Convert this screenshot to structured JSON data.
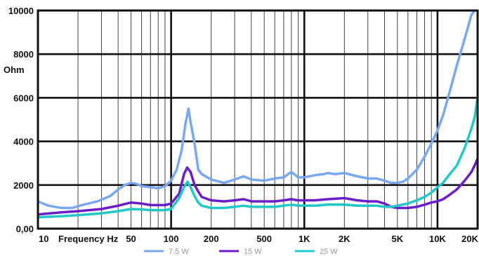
{
  "chart_data": {
    "type": "line",
    "title": "",
    "xlabel": "Frequency Hz",
    "ylabel_line1": "8000",
    "ylabel_line2": "Ohm",
    "x_scale": "log",
    "xlim": [
      10,
      20000
    ],
    "ylim": [
      0,
      10000
    ],
    "grid": true,
    "legend_position": "bottom",
    "x_ticks": [
      {
        "value": 10,
        "label": "10"
      },
      {
        "value": 50,
        "label": "50"
      },
      {
        "value": 100,
        "label": "100"
      },
      {
        "value": 200,
        "label": "200"
      },
      {
        "value": 500,
        "label": "500"
      },
      {
        "value": 1000,
        "label": "1K"
      },
      {
        "value": 2000,
        "label": "2K"
      },
      {
        "value": 5000,
        "label": "5K"
      },
      {
        "value": 10000,
        "label": "10K"
      },
      {
        "value": 20000,
        "label": "20K"
      }
    ],
    "y_ticks": [
      {
        "value": 0,
        "label": "0,00"
      },
      {
        "value": 2000,
        "label": "2000"
      },
      {
        "value": 4000,
        "label": "4000"
      },
      {
        "value": 6000,
        "label": "6000"
      },
      {
        "value": 8000,
        "label": "8000"
      },
      {
        "value": 10000,
        "label": "10000"
      }
    ],
    "series": [
      {
        "name": "7.5 W",
        "color": "#7aa8ee",
        "points": [
          [
            10,
            1250
          ],
          [
            12,
            1050
          ],
          [
            15,
            950
          ],
          [
            18,
            950
          ],
          [
            22,
            1100
          ],
          [
            28,
            1250
          ],
          [
            35,
            1500
          ],
          [
            40,
            1800
          ],
          [
            45,
            2000
          ],
          [
            50,
            2100
          ],
          [
            55,
            2050
          ],
          [
            60,
            1950
          ],
          [
            70,
            1900
          ],
          [
            80,
            1850
          ],
          [
            90,
            1950
          ],
          [
            100,
            2200
          ],
          [
            110,
            2700
          ],
          [
            120,
            3600
          ],
          [
            128,
            4800
          ],
          [
            135,
            5500
          ],
          [
            140,
            4900
          ],
          [
            150,
            3900
          ],
          [
            160,
            2700
          ],
          [
            170,
            2500
          ],
          [
            200,
            2250
          ],
          [
            250,
            2100
          ],
          [
            300,
            2250
          ],
          [
            350,
            2400
          ],
          [
            400,
            2250
          ],
          [
            500,
            2200
          ],
          [
            600,
            2300
          ],
          [
            700,
            2350
          ],
          [
            800,
            2600
          ],
          [
            900,
            2350
          ],
          [
            1000,
            2350
          ],
          [
            1200,
            2450
          ],
          [
            1400,
            2500
          ],
          [
            1500,
            2550
          ],
          [
            1700,
            2500
          ],
          [
            2000,
            2550
          ],
          [
            2500,
            2400
          ],
          [
            3000,
            2300
          ],
          [
            3500,
            2300
          ],
          [
            4000,
            2200
          ],
          [
            4500,
            2100
          ],
          [
            5000,
            2100
          ],
          [
            5500,
            2150
          ],
          [
            6000,
            2300
          ],
          [
            7000,
            2700
          ],
          [
            8000,
            3300
          ],
          [
            9000,
            3900
          ],
          [
            10000,
            4500
          ],
          [
            11000,
            5200
          ],
          [
            12000,
            6000
          ],
          [
            14000,
            7500
          ],
          [
            16000,
            8700
          ],
          [
            18000,
            9800
          ],
          [
            19000,
            10000
          ]
        ]
      },
      {
        "name": "15 W",
        "color": "#6a1ec8",
        "points": [
          [
            10,
            650
          ],
          [
            15,
            750
          ],
          [
            20,
            800
          ],
          [
            30,
            900
          ],
          [
            40,
            1050
          ],
          [
            50,
            1200
          ],
          [
            60,
            1150
          ],
          [
            70,
            1080
          ],
          [
            90,
            1080
          ],
          [
            100,
            1150
          ],
          [
            115,
            1600
          ],
          [
            125,
            2500
          ],
          [
            132,
            2800
          ],
          [
            140,
            2600
          ],
          [
            150,
            2000
          ],
          [
            160,
            1700
          ],
          [
            170,
            1450
          ],
          [
            200,
            1300
          ],
          [
            250,
            1250
          ],
          [
            300,
            1300
          ],
          [
            350,
            1350
          ],
          [
            400,
            1250
          ],
          [
            500,
            1250
          ],
          [
            600,
            1250
          ],
          [
            700,
            1300
          ],
          [
            800,
            1350
          ],
          [
            900,
            1300
          ],
          [
            1000,
            1300
          ],
          [
            1200,
            1300
          ],
          [
            1500,
            1350
          ],
          [
            2000,
            1400
          ],
          [
            2500,
            1300
          ],
          [
            3000,
            1250
          ],
          [
            3500,
            1250
          ],
          [
            4000,
            1150
          ],
          [
            4500,
            1000
          ],
          [
            5000,
            950
          ],
          [
            6000,
            950
          ],
          [
            7000,
            1000
          ],
          [
            8000,
            1100
          ],
          [
            9000,
            1200
          ],
          [
            10000,
            1250
          ],
          [
            11000,
            1350
          ],
          [
            12000,
            1500
          ],
          [
            14000,
            1800
          ],
          [
            16000,
            2200
          ],
          [
            18000,
            2600
          ],
          [
            19000,
            2900
          ],
          [
            20000,
            3200
          ]
        ]
      },
      {
        "name": "25 W",
        "color": "#22c8c8",
        "points": [
          [
            10,
            520
          ],
          [
            15,
            570
          ],
          [
            20,
            620
          ],
          [
            30,
            700
          ],
          [
            40,
            800
          ],
          [
            50,
            900
          ],
          [
            60,
            880
          ],
          [
            70,
            850
          ],
          [
            90,
            850
          ],
          [
            100,
            900
          ],
          [
            115,
            1400
          ],
          [
            125,
            1900
          ],
          [
            133,
            2150
          ],
          [
            140,
            1900
          ],
          [
            150,
            1500
          ],
          [
            160,
            1200
          ],
          [
            170,
            1050
          ],
          [
            200,
            950
          ],
          [
            250,
            950
          ],
          [
            300,
            1000
          ],
          [
            350,
            1050
          ],
          [
            400,
            1000
          ],
          [
            500,
            1000
          ],
          [
            600,
            1000
          ],
          [
            700,
            1050
          ],
          [
            800,
            1100
          ],
          [
            900,
            1050
          ],
          [
            1000,
            1050
          ],
          [
            1200,
            1050
          ],
          [
            1500,
            1100
          ],
          [
            2000,
            1100
          ],
          [
            2500,
            1050
          ],
          [
            3000,
            1050
          ],
          [
            3500,
            1050
          ],
          [
            4000,
            1000
          ],
          [
            4500,
            1000
          ],
          [
            5000,
            1050
          ],
          [
            6000,
            1150
          ],
          [
            7000,
            1300
          ],
          [
            8000,
            1450
          ],
          [
            9000,
            1650
          ],
          [
            10000,
            1900
          ],
          [
            11000,
            2100
          ],
          [
            12000,
            2400
          ],
          [
            14000,
            2900
          ],
          [
            16000,
            3700
          ],
          [
            18000,
            4600
          ],
          [
            19000,
            5100
          ],
          [
            20000,
            6000
          ]
        ]
      }
    ]
  }
}
